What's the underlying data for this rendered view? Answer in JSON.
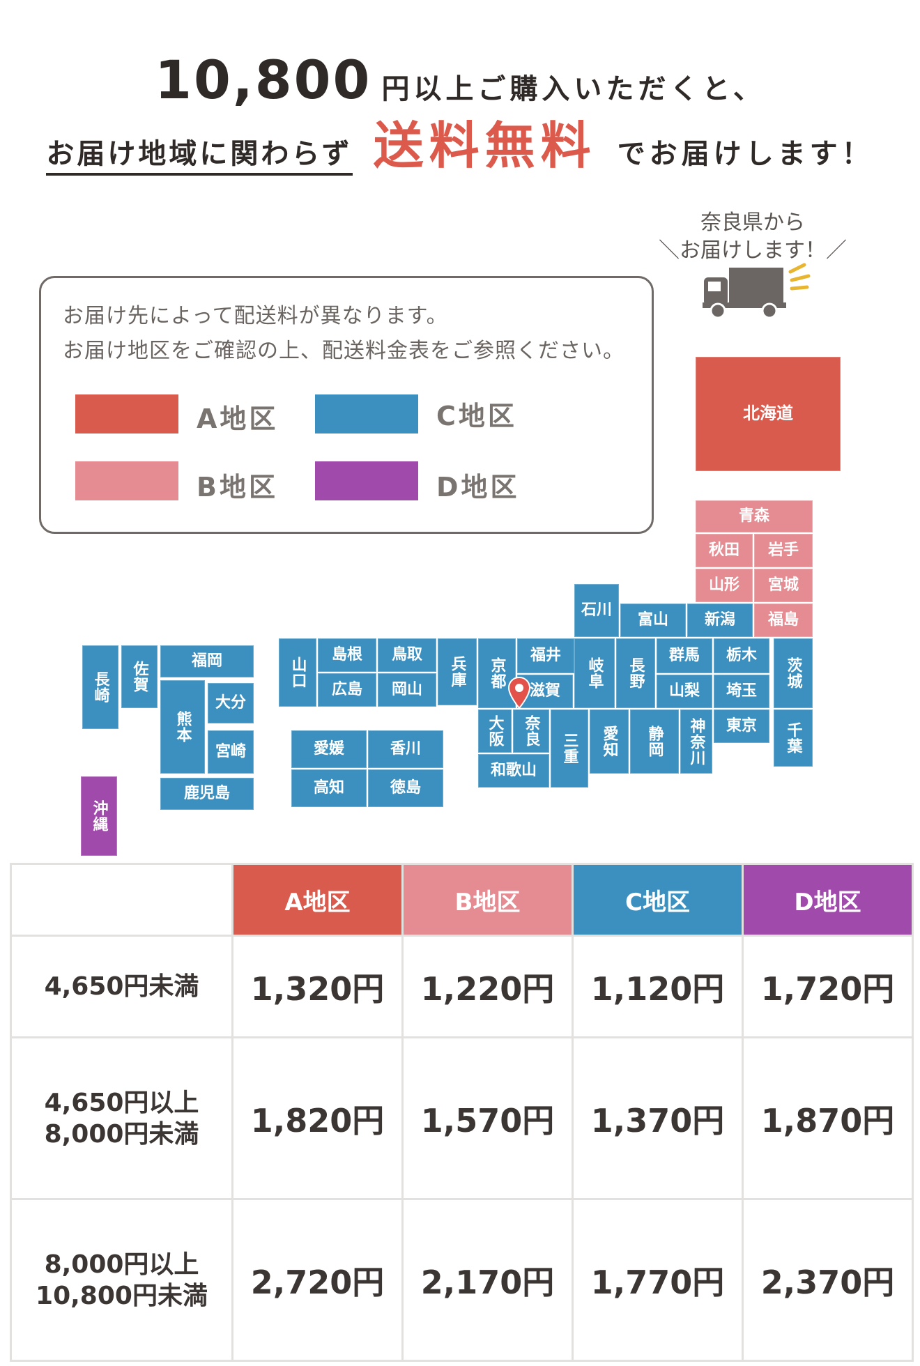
{
  "header": {
    "amount": "10,800",
    "line1_rest": "円以上ご購入いただくと、",
    "line2_underlined": "お届け地域に関わらず",
    "line2_highlight": "送料無料",
    "line2_tail": "でお届けします！"
  },
  "legend": {
    "note_line1": "お届け先によって配送料が異なります。",
    "note_line2": "お届け地区をご確認の上、配送料金表をご参照ください。",
    "items": [
      {
        "label": "A地区",
        "color": "#d95b4d"
      },
      {
        "label": "C地区",
        "color": "#3b90c0"
      },
      {
        "label": "B地区",
        "color": "#e58c92"
      },
      {
        "label": "D地区",
        "color": "#a04aab"
      }
    ]
  },
  "origin": {
    "line1": "奈良県から",
    "line2": "＼お届けします！／",
    "truck_icon": "truck-icon",
    "pin_icon": "location-pin-icon"
  },
  "prefectures": {
    "hokkaido": "北海道",
    "aomori": "青森",
    "akita": "秋田",
    "iwate": "岩手",
    "yamagata": "山形",
    "miyagi": "宮城",
    "niigata": "新潟",
    "fukushima": "福島",
    "ishikawa": "石川",
    "toyama": "富山",
    "fukui": "福井",
    "gifu": "岐阜",
    "nagano": "長野",
    "gunma": "群馬",
    "tochigi": "栃木",
    "ibaraki": "茨城",
    "yamanashi": "山梨",
    "saitama": "埼玉",
    "tokyo": "東京",
    "chiba": "千葉",
    "kanagawa": "神奈川",
    "shizuoka": "静岡",
    "aichi": "愛知",
    "mie": "三重",
    "shiga": "滋賀",
    "kyoto": "京都",
    "osaka": "大阪",
    "nara": "奈良",
    "wakayama": "和歌山",
    "hyogo": "兵庫",
    "tottori": "鳥取",
    "shimane": "島根",
    "okayama": "岡山",
    "hiroshima": "広島",
    "yamaguchi": "山口",
    "ehime": "愛媛",
    "kagawa": "香川",
    "kochi": "高知",
    "tokushima": "徳島",
    "fukuoka": "福岡",
    "saga": "佐賀",
    "nagasaki": "長崎",
    "oita": "大分",
    "kumamoto": "熊本",
    "miyazaki": "宮崎",
    "kagoshima": "鹿児島",
    "okinawa": "沖縄"
  },
  "rates": {
    "headers": [
      "A地区",
      "B地区",
      "C地区",
      "D地区"
    ],
    "rows": [
      {
        "label1": "4,650円未満",
        "label2": "",
        "prices": [
          "1,320円",
          "1,220円",
          "1,120円",
          "1,720円"
        ]
      },
      {
        "label1": "4,650円以上",
        "label2": "8,000円未満",
        "prices": [
          "1,820円",
          "1,570円",
          "1,370円",
          "1,870円"
        ]
      },
      {
        "label1": "8,000円以上",
        "label2": "10,800円未満",
        "prices": [
          "2,720円",
          "2,170円",
          "1,770円",
          "2,370円"
        ]
      }
    ]
  }
}
